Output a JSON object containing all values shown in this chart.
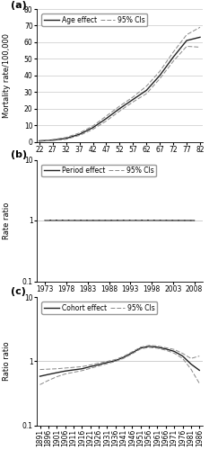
{
  "panel_a": {
    "label": "(a)",
    "legend_main": "Age effect",
    "legend_ci": "95% CIs",
    "ylabel": "Mortality rate/100,000",
    "ages": [
      22,
      27,
      32,
      37,
      42,
      47,
      52,
      57,
      62,
      67,
      72,
      77,
      82
    ],
    "age_effect": [
      0.5,
      1.0,
      2.0,
      4.5,
      8.5,
      14.0,
      20.0,
      25.5,
      31.0,
      40.0,
      51.0,
      61.0,
      63.0
    ],
    "age_lower": [
      0.3,
      0.7,
      1.5,
      3.8,
      7.5,
      12.5,
      18.5,
      24.0,
      29.0,
      38.0,
      48.5,
      57.5,
      57.0
    ],
    "age_upper": [
      0.7,
      1.3,
      2.6,
      5.3,
      9.5,
      15.5,
      21.5,
      27.0,
      33.5,
      42.5,
      54.0,
      64.5,
      69.0
    ],
    "ylim": [
      0,
      80
    ],
    "yticks": [
      0,
      10,
      20,
      30,
      40,
      50,
      60,
      70,
      80
    ],
    "xlim": [
      21,
      83
    ],
    "xticks": [
      22,
      27,
      32,
      37,
      42,
      47,
      52,
      57,
      62,
      67,
      72,
      77,
      82
    ]
  },
  "panel_b": {
    "label": "(b)",
    "legend_main": "Period effect",
    "legend_ci": "95% CIs",
    "ylabel": "Rate ratio",
    "periods": [
      1973,
      1978,
      1983,
      1988,
      1993,
      1998,
      2003,
      2008
    ],
    "period_effect": [
      1.01,
      1.01,
      1.005,
      1.005,
      1.01,
      1.01,
      1.005,
      1.0
    ],
    "period_lower": [
      1.005,
      1.005,
      1.0,
      1.0,
      1.005,
      1.005,
      1.0,
      0.995
    ],
    "period_upper": [
      1.015,
      1.015,
      1.01,
      1.01,
      1.015,
      1.015,
      1.01,
      1.005
    ],
    "ylim_log": [
      0.1,
      10
    ],
    "xlim": [
      1971,
      2010
    ],
    "xticks": [
      1973,
      1978,
      1983,
      1988,
      1993,
      1998,
      2003,
      2008
    ],
    "yticks_log": [
      0.1,
      1,
      10
    ]
  },
  "panel_c": {
    "label": "(c)",
    "legend_main": "Cohort effect",
    "legend_ci": "95% CIs",
    "ylabel": "Ratio ratio",
    "cohorts": [
      1891,
      1896,
      1901,
      1906,
      1911,
      1916,
      1921,
      1926,
      1931,
      1936,
      1941,
      1946,
      1951,
      1956,
      1961,
      1966,
      1971,
      1976,
      1981,
      1986
    ],
    "cohort_effect": [
      0.58,
      0.62,
      0.66,
      0.7,
      0.73,
      0.76,
      0.82,
      0.88,
      0.95,
      1.02,
      1.15,
      1.35,
      1.6,
      1.7,
      1.65,
      1.55,
      1.42,
      1.2,
      0.9,
      0.72
    ],
    "cohort_lower": [
      0.43,
      0.5,
      0.57,
      0.63,
      0.67,
      0.71,
      0.77,
      0.84,
      0.91,
      0.99,
      1.11,
      1.3,
      1.55,
      1.64,
      1.59,
      1.48,
      1.33,
      1.1,
      0.75,
      0.45
    ],
    "cohort_upper": [
      0.74,
      0.75,
      0.76,
      0.78,
      0.8,
      0.82,
      0.87,
      0.93,
      0.99,
      1.06,
      1.19,
      1.4,
      1.65,
      1.76,
      1.72,
      1.62,
      1.52,
      1.32,
      1.1,
      1.2
    ],
    "ylim_log": [
      0.1,
      10
    ],
    "xlim": [
      1889,
      1988
    ],
    "xticks": [
      1891,
      1896,
      1901,
      1906,
      1911,
      1916,
      1921,
      1926,
      1931,
      1936,
      1941,
      1946,
      1951,
      1956,
      1961,
      1966,
      1971,
      1976,
      1981,
      1986
    ],
    "yticks_log": [
      0.1,
      1,
      10
    ]
  },
  "line_color": "#222222",
  "ci_color": "#888888",
  "bg_color": "#ffffff",
  "grid_color": "#bbbbbb",
  "fontsize_label": 6,
  "fontsize_tick": 5.5,
  "fontsize_legend": 5.5,
  "fontsize_panel": 8
}
